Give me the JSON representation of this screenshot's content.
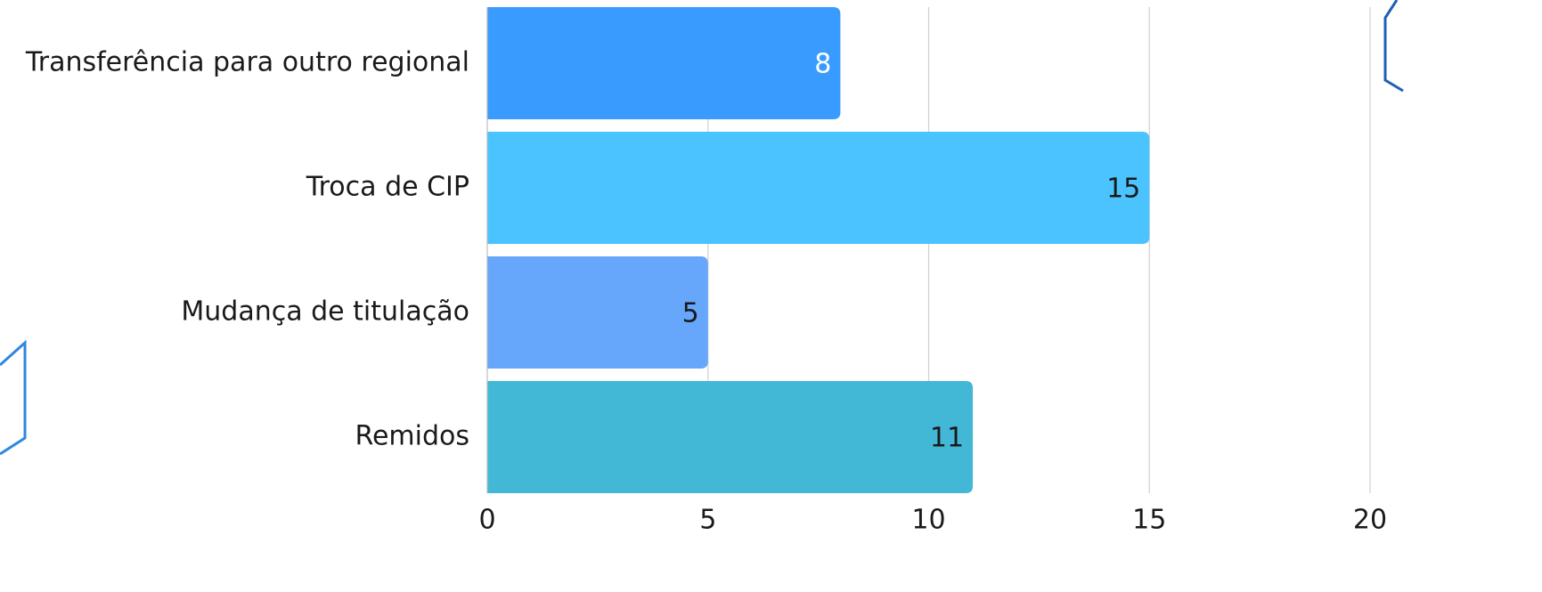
{
  "chart_data": {
    "type": "bar",
    "orientation": "horizontal",
    "categories": [
      "Transferência para outro regional",
      "Troca de CIP",
      "Mudança de titulação",
      "Remidos"
    ],
    "values": [
      8,
      15,
      5,
      11
    ],
    "colors": [
      "#3a9bff",
      "#4ac3ff",
      "#66a6fb",
      "#43b8d6"
    ],
    "xlim": [
      0,
      20
    ],
    "xticks": [
      0,
      5,
      10,
      15,
      20
    ],
    "grid": true
  }
}
